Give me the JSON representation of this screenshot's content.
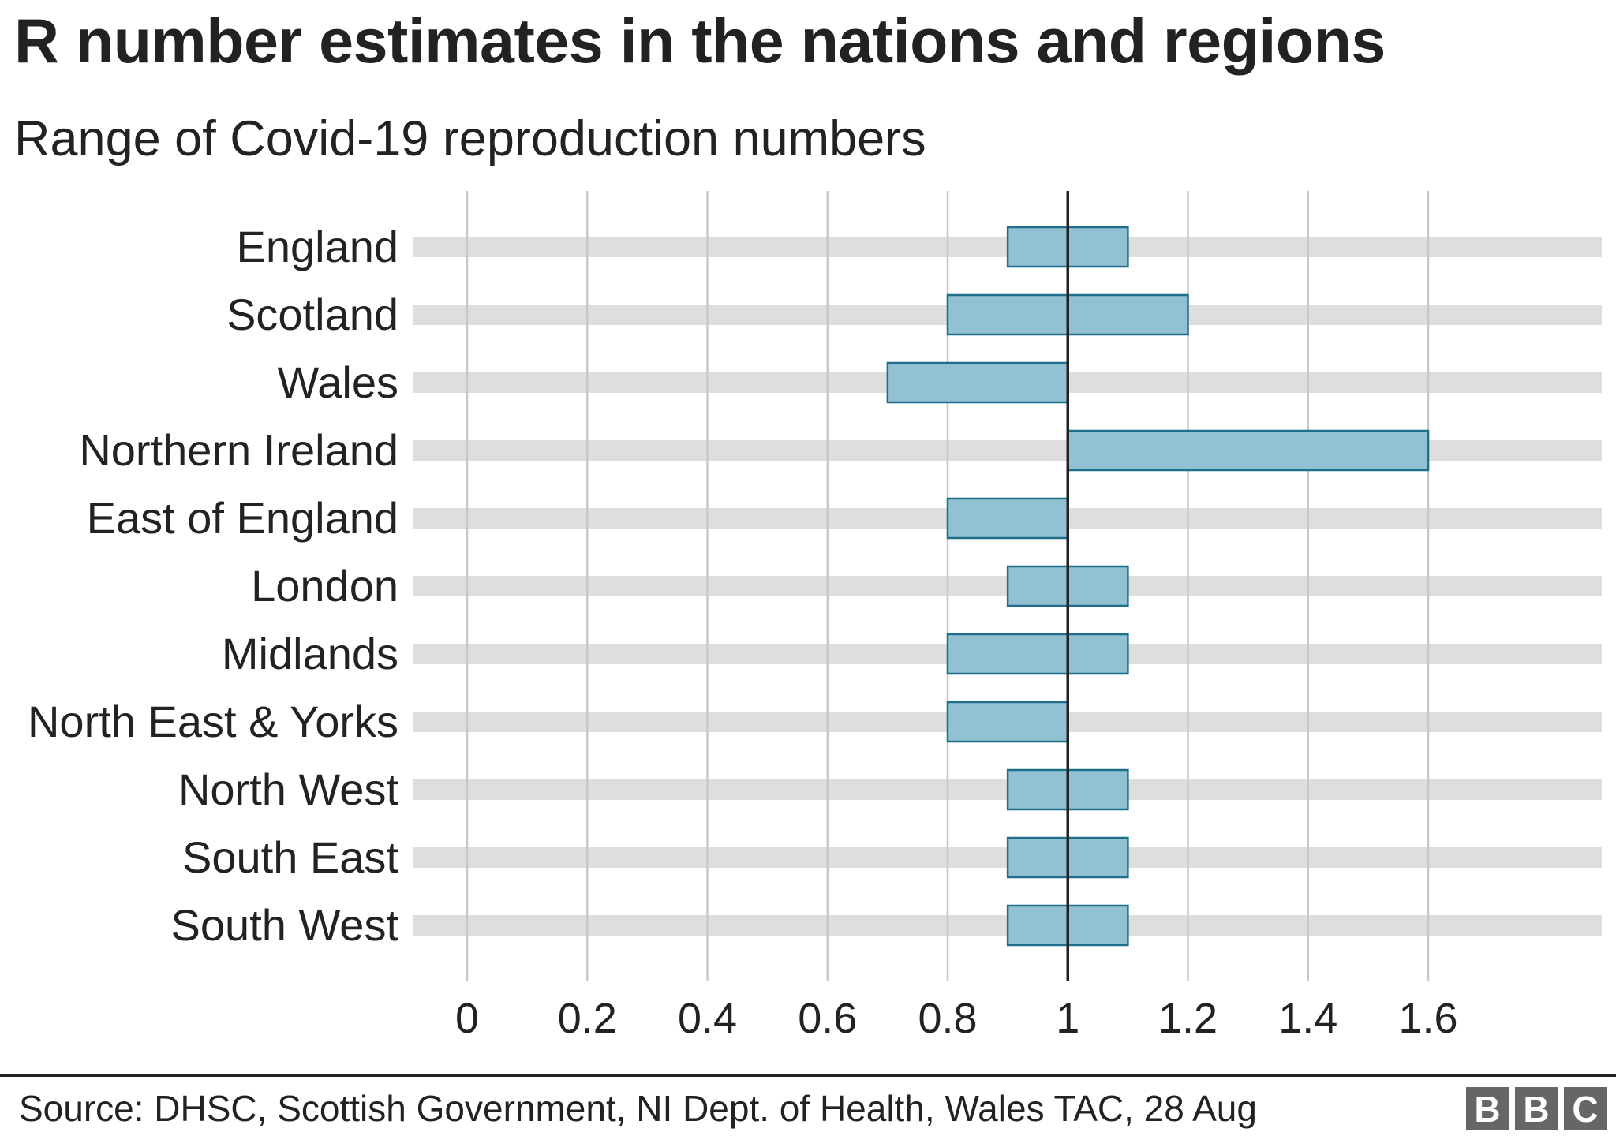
{
  "chart_data": {
    "type": "range_bar",
    "title": "R number estimates in the nations and regions",
    "subtitle": "Range of Covid-19 reproduction numbers",
    "categories": [
      "England",
      "Scotland",
      "Wales",
      "Northern Ireland",
      "East of England",
      "London",
      "Midlands",
      "North East & Yorks",
      "North West",
      "South East",
      "South West"
    ],
    "ranges": [
      [
        0.9,
        1.1
      ],
      [
        0.8,
        1.2
      ],
      [
        0.7,
        1.0
      ],
      [
        1.0,
        1.6
      ],
      [
        0.8,
        1.0
      ],
      [
        0.9,
        1.1
      ],
      [
        0.8,
        1.1
      ],
      [
        0.8,
        1.0
      ],
      [
        0.9,
        1.1
      ],
      [
        0.9,
        1.1
      ],
      [
        0.9,
        1.1
      ]
    ],
    "xlim": [
      0,
      1.6
    ],
    "xticks": [
      0,
      0.2,
      0.4,
      0.6,
      0.8,
      1,
      1.2,
      1.4,
      1.6
    ],
    "xtick_labels": [
      "0",
      "0.2",
      "0.4",
      "0.6",
      "0.8",
      "1",
      "1.2",
      "1.4",
      "1.6"
    ],
    "reference_line": 1,
    "grid": true,
    "source": "Source: DHSC, Scottish Government, NI Dept. of Health, Wales TAC, 28 Aug",
    "colors": {
      "bar_fill": "#92c1d3",
      "bar_stroke": "#1f6f8b",
      "track": "#dedede",
      "grid": "#c8c8c8",
      "reference": "#222222",
      "text": "#222222"
    }
  },
  "footer": {
    "logo": [
      "B",
      "B",
      "C"
    ]
  }
}
